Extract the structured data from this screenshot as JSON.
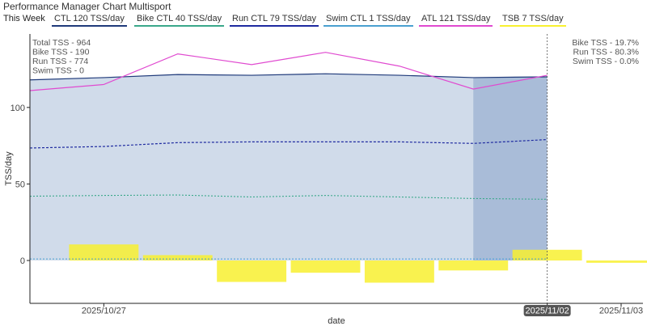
{
  "header": {
    "title": "Performance Manager Chart Multisport",
    "period_label": "This Week"
  },
  "legend": [
    {
      "label": "CTL  120 TSS/day",
      "color": "#1f3a7a"
    },
    {
      "label": "Bike CTL  40 TSS/day",
      "color": "#3aa88a"
    },
    {
      "label": "Run CTL  79 TSS/day",
      "color": "#1e2aa0"
    },
    {
      "label": "Swim CTL  1 TSS/day",
      "color": "#4aa0d0"
    },
    {
      "label": "ATL  121 TSS/day",
      "color": "#e04ad0"
    },
    {
      "label": "TSB  7 TSS/day",
      "color": "#f8f030"
    }
  ],
  "annotations": {
    "left": [
      "Total TSS - 964",
      "Bike TSS - 190",
      "Run TSS - 774",
      "Swim TSS - 0"
    ],
    "right": [
      "Bike TSS - 19.7%",
      "Run TSS - 80.3%",
      "Swim TSS - 0.0%"
    ]
  },
  "chart_data": {
    "type": "line",
    "xlabel": "date",
    "ylabel": "TSS/day",
    "ylim": [
      -28,
      148
    ],
    "yticks": [
      0,
      50,
      100
    ],
    "xlim": [
      "2025-10-26",
      "2025-11-03"
    ],
    "xticks": [
      {
        "date": "2025-10-27",
        "label": "2025/10/27",
        "highlight": false
      },
      {
        "date": "2025-11-02",
        "label": "2025/11/02",
        "highlight": true
      },
      {
        "date": "2025-11-03",
        "label": "2025/11/03",
        "highlight": false
      }
    ],
    "x": [
      "2025-10-26",
      "2025-10-27",
      "2025-10-28",
      "2025-10-29",
      "2025-10-30",
      "2025-10-31",
      "2025-11-01",
      "2025-11-02"
    ],
    "series": [
      {
        "name": "CTL",
        "style": "area",
        "color": "#1f3a7a",
        "values": [
          118,
          119.5,
          121.5,
          121,
          122,
          121,
          119.5,
          120
        ]
      },
      {
        "name": "Bike CTL",
        "style": "dotted",
        "color": "#3aa88a",
        "values": [
          42,
          42.5,
          42.8,
          41.5,
          42.5,
          41.5,
          40.5,
          40
        ]
      },
      {
        "name": "Run CTL",
        "style": "dashed",
        "color": "#1e2aa0",
        "values": [
          73.5,
          74.5,
          77,
          77.5,
          77.5,
          77.5,
          76.5,
          79
        ]
      },
      {
        "name": "Swim CTL",
        "style": "dotted",
        "color": "#4aa0d0",
        "values": [
          1,
          1,
          1,
          1,
          1,
          1,
          1,
          1
        ]
      },
      {
        "name": "ATL",
        "style": "line",
        "color": "#e04ad0",
        "values": [
          111,
          115,
          135,
          128,
          136,
          127,
          112,
          121
        ]
      }
    ],
    "tsb_bars": {
      "name": "TSB",
      "color": "#f8f030",
      "x": [
        "2025-10-27",
        "2025-10-28",
        "2025-10-29",
        "2025-10-30",
        "2025-10-31",
        "2025-11-01",
        "2025-11-02",
        "2025-11-03"
      ],
      "values": [
        10.5,
        3.5,
        -14,
        -8,
        -14.5,
        -6.5,
        7,
        -1.5
      ]
    },
    "highlight_range": [
      "2025-11-01",
      "2025-11-02"
    ],
    "reference_line": "2025-11-02",
    "grid": false,
    "legend_position": "top"
  }
}
